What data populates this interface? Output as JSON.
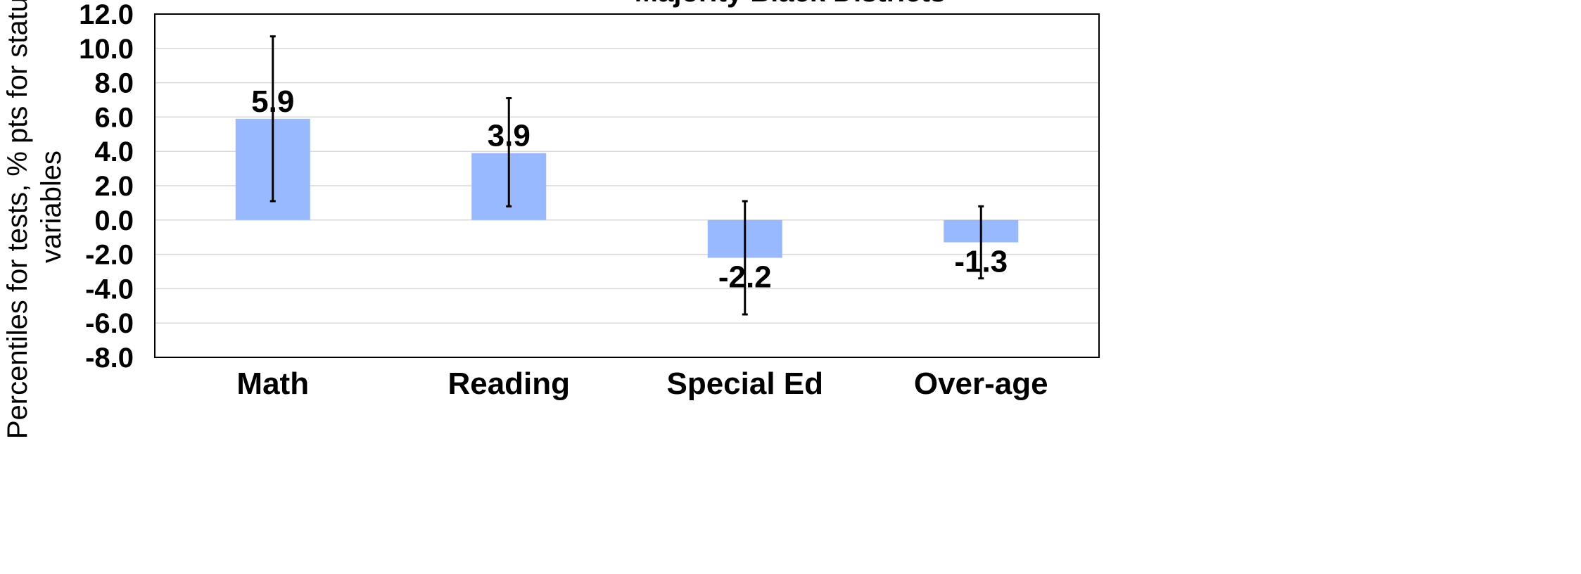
{
  "chart_data": {
    "type": "bar",
    "title": "Majority Black Districts",
    "ylabel_lines": [
      "Percentiles for tests, % pts for status",
      "variables"
    ],
    "xlabel": "",
    "categories": [
      "Math",
      "Reading",
      "Special Ed",
      "Over-age"
    ],
    "values": [
      5.9,
      3.9,
      -2.2,
      -1.3
    ],
    "value_labels": [
      "5.9",
      "3.9",
      "-2.2",
      "-1.3"
    ],
    "error_bars": [
      {
        "low": 1.1,
        "high": 10.7
      },
      {
        "low": 0.8,
        "high": 7.1
      },
      {
        "low": -5.5,
        "high": 1.1
      },
      {
        "low": -3.4,
        "high": 0.8
      }
    ],
    "ylim": [
      -8,
      12
    ],
    "yticks": [
      12,
      10,
      8,
      6,
      4,
      2,
      0,
      -2,
      -4,
      -6,
      -8
    ],
    "ytick_labels": [
      "12.0",
      "10.0",
      "8.0",
      "6.0",
      "4.0",
      "2.0",
      "0.0",
      "-2.0",
      "-4.0",
      "-6.0",
      "-8.0"
    ],
    "grid": true,
    "legend": "none",
    "colors": {
      "bar": "#99b9ff",
      "gridline": "#d9d9d9",
      "frame": "#000000",
      "error_bar": "#000000",
      "text": "#000000"
    }
  }
}
